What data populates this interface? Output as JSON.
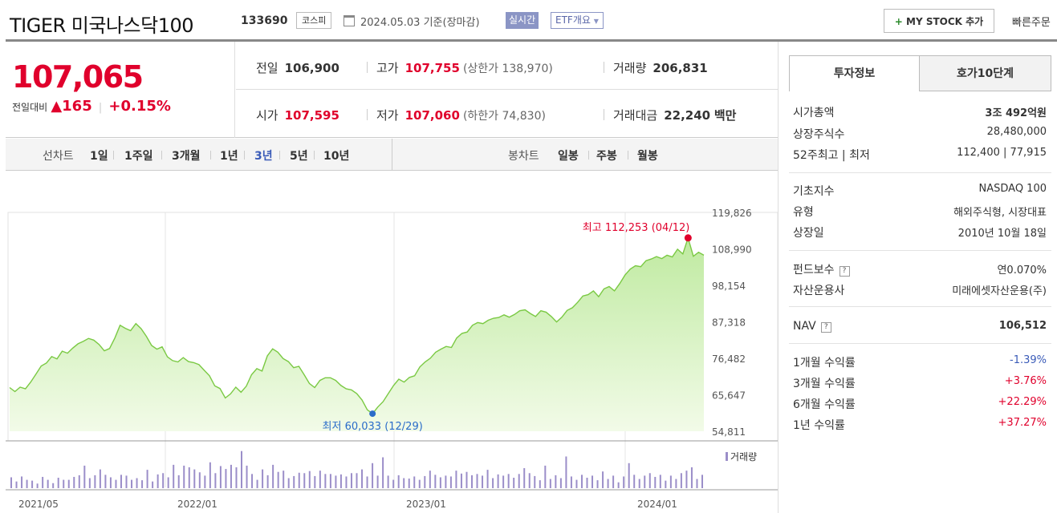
{
  "header": {
    "title": "TIGER 미국나스닥100",
    "code": "133690",
    "market": "코스피",
    "date": "2024.05.03",
    "date_suffix": "기준(장마감)",
    "realtime": "실시간",
    "etf_overview": "ETF개요",
    "my_stock": "MY STOCK 추가",
    "quick_order": "빠른주문"
  },
  "quote": {
    "price": "107,065",
    "change_label": "전일대비",
    "change": "165",
    "change_pct": "+0.15%",
    "prev_close_label": "전일",
    "prev_close": "106,900",
    "high_label": "고가",
    "high": "107,755",
    "upper_limit": "(상한가 138,970)",
    "volume_label": "거래량",
    "volume": "206,831",
    "open_label": "시가",
    "open": "107,595",
    "low_label": "저가",
    "low": "107,060",
    "lower_limit": "(하한가 74,830)",
    "amount_label": "거래대금",
    "amount": "22,240",
    "amount_unit": "백만"
  },
  "periods": {
    "line_label": "선차트",
    "line_items": [
      "1일",
      "1주일",
      "3개월",
      "1년",
      "3년",
      "5년",
      "10년"
    ],
    "active": "3년",
    "candle_label": "봉차트",
    "candle_items": [
      "일봉",
      "주봉",
      "월봉"
    ]
  },
  "chart_data": {
    "type": "area",
    "x_ticks": [
      "2021/05",
      "2022/01",
      "2023/01",
      "2024/01"
    ],
    "y_ticks": [
      "119,826",
      "108,990",
      "98,154",
      "87,318",
      "76,482",
      "65,647",
      "54,811"
    ],
    "ylim": [
      54811,
      119826
    ],
    "max_label": "최고 112,253 (04/12)",
    "min_label": "최저 60,033 (12/29)",
    "volume_label": "거래량",
    "colors": {
      "line": "#7ac943",
      "fill_top": "#bfeaa0",
      "fill_bottom": "#f2fbe8",
      "max": "#e0002c",
      "min": "#2a6cc9",
      "volume": "#9b8ec9"
    },
    "values": [
      67800,
      66600,
      67900,
      67400,
      69400,
      71800,
      74200,
      75100,
      77000,
      76300,
      78600,
      78000,
      79500,
      80800,
      81500,
      82400,
      81900,
      80600,
      78700,
      79400,
      82500,
      86300,
      85400,
      84700,
      86800,
      85300,
      83000,
      80300,
      79200,
      79900,
      76900,
      75800,
      75400,
      76700,
      75500,
      75200,
      74600,
      72900,
      71300,
      68300,
      67500,
      64700,
      65900,
      67900,
      66400,
      68200,
      71600,
      73400,
      72700,
      77200,
      79300,
      78300,
      76400,
      75500,
      73700,
      74100,
      71600,
      69000,
      67800,
      69900,
      70700,
      70700,
      69900,
      68400,
      67400,
      67100,
      66000,
      64100,
      61200,
      60033,
      62000,
      63600,
      66000,
      68400,
      70300,
      69400,
      70800,
      71300,
      73900,
      75400,
      76500,
      78300,
      79200,
      80000,
      79700,
      82500,
      83900,
      84300,
      86300,
      87100,
      86800,
      87800,
      88400,
      88600,
      89400,
      88700,
      89500,
      90600,
      90900,
      89800,
      88900,
      90600,
      90200,
      88900,
      87300,
      88700,
      90700,
      91500,
      93100,
      95000,
      95400,
      96500,
      94800,
      97100,
      97800,
      96500,
      98700,
      101200,
      103000,
      104000,
      103700,
      105500,
      106000,
      106700,
      106100,
      107100,
      106600,
      108900,
      107500,
      112253,
      106800,
      108000,
      107100
    ],
    "volume_heights": [
      0.26,
      0.16,
      0.28,
      0.2,
      0.18,
      0.11,
      0.27,
      0.2,
      0.12,
      0.25,
      0.2,
      0.2,
      0.27,
      0.31,
      0.54,
      0.24,
      0.31,
      0.45,
      0.32,
      0.26,
      0.2,
      0.32,
      0.3,
      0.2,
      0.24,
      0.19,
      0.44,
      0.16,
      0.33,
      0.36,
      0.26,
      0.56,
      0.31,
      0.54,
      0.5,
      0.45,
      0.38,
      0.3,
      0.62,
      0.36,
      0.53,
      0.46,
      0.56,
      0.5,
      0.89,
      0.54,
      0.34,
      0.2,
      0.45,
      0.31,
      0.56,
      0.39,
      0.42,
      0.24,
      0.29,
      0.37,
      0.36,
      0.41,
      0.29,
      0.42,
      0.34,
      0.34,
      0.3,
      0.33,
      0.28,
      0.36,
      0.36,
      0.45,
      0.28,
      0.6,
      0.3,
      0.74,
      0.3,
      0.2,
      0.31,
      0.24,
      0.23,
      0.28,
      0.2,
      0.29,
      0.42,
      0.32,
      0.26,
      0.3,
      0.28,
      0.42,
      0.35,
      0.39,
      0.31,
      0.34,
      0.3,
      0.44,
      0.24,
      0.33,
      0.3,
      0.34,
      0.25,
      0.34,
      0.48,
      0.36,
      0.29,
      0.19,
      0.54,
      0.22,
      0.31,
      0.24,
      0.76,
      0.28,
      0.2,
      0.32,
      0.25,
      0.3,
      0.19,
      0.4,
      0.22,
      0.3,
      0.14,
      0.28,
      0.6,
      0.32,
      0.22,
      0.3,
      0.36,
      0.27,
      0.32,
      0.18,
      0.3,
      0.22,
      0.36,
      0.42,
      0.5,
      0.22,
      0.32
    ]
  },
  "right_panel": {
    "tab_active": "투자정보",
    "tab_other": "호가10단계",
    "market_cap_label": "시가총액",
    "market_cap": "3조 492억원",
    "shares_label": "상장주식수",
    "shares": "28,480,000",
    "w52_label": "52주최고 | 최저",
    "w52": "112,400 | 77,915",
    "base_index_label": "기초지수",
    "base_index": "NASDAQ 100",
    "type_label": "유형",
    "type": "해외주식형, 시장대표",
    "listed_label": "상장일",
    "listed": "2010년 10월 18일",
    "fee_label": "펀드보수",
    "fee": "연0.070%",
    "manager_label": "자산운용사",
    "manager": "미래에셋자산운용(주)",
    "nav_label": "NAV",
    "nav": "106,512",
    "r1m_label": "1개월 수익률",
    "r1m": "-1.39%",
    "r3m_label": "3개월 수익률",
    "r3m": "+3.76%",
    "r6m_label": "6개월 수익률",
    "r6m": "+22.29%",
    "r1y_label": "1년 수익률",
    "r1y": "+37.27%",
    "hint_glyph": "?"
  }
}
